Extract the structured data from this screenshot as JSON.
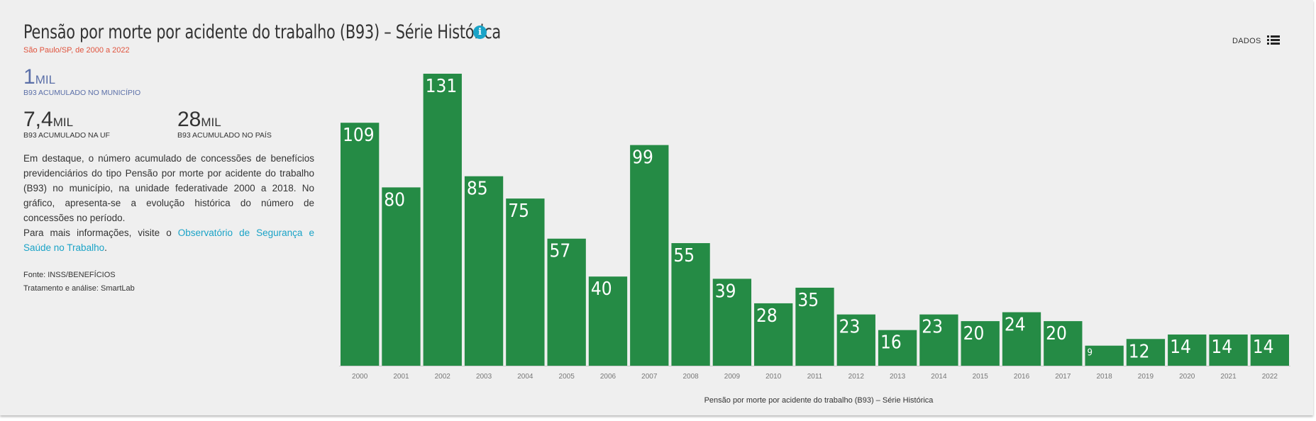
{
  "header": {
    "title": "Pensão por morte por acidente do trabalho (B93) – Série Histórica",
    "subtitle": "São Paulo/SP, de 2000 a 2022",
    "dados_label": "DADOS"
  },
  "kpis": {
    "municipio": {
      "value": "1",
      "unit": "MIL",
      "label": "B93 ACUMULADO NO MUNICÍPIO"
    },
    "uf": {
      "value": "7,4",
      "unit": "MIL",
      "label": "B93 ACUMULADO NA UF"
    },
    "pais": {
      "value": "28",
      "unit": "MIL",
      "label": "B93 ACUMULADO NO PAÍS"
    }
  },
  "description": {
    "paragraph": "Em destaque, o número acumulado de concessões de benefícios previdenciários do tipo Pensão por morte por acidente do trabalho (B93) no município, na unidade federativade 2000 a 2018. No gráfico, apresenta-se a evolução histórica do número de concessões no período.",
    "more_info_prefix": "Para mais informações, visite o ",
    "link_text": "Observatório de Segurança e Saúde no Trabalho",
    "more_info_suffix": "."
  },
  "source": {
    "fonte": "Fonte: INSS/BENEFÍCIOS",
    "tratamento": "Tratamento e análise: SmartLab"
  },
  "icons": {
    "info": "info-icon",
    "data_table": "list-icon"
  },
  "colors": {
    "bar": "#258b45",
    "accent": "#1aa3c7",
    "subtitle": "#e0533d",
    "kpi_main": "#5b6fa8"
  },
  "chart_data": {
    "type": "bar",
    "categories": [
      "2000",
      "2001",
      "2002",
      "2003",
      "2004",
      "2005",
      "2006",
      "2007",
      "2008",
      "2009",
      "2010",
      "2011",
      "2012",
      "2013",
      "2014",
      "2015",
      "2016",
      "2017",
      "2018",
      "2019",
      "2020",
      "2021",
      "2022"
    ],
    "values": [
      109,
      80,
      131,
      85,
      75,
      57,
      40,
      99,
      55,
      39,
      28,
      35,
      23,
      16,
      23,
      20,
      24,
      20,
      9,
      12,
      14,
      14,
      14
    ],
    "xlabel": "Pensão por morte por acidente do trabalho (B93) – Série Histórica",
    "ylabel": "",
    "ylim": [
      0,
      131
    ],
    "grid": false,
    "data_labels": true,
    "bar_color": "#258b45"
  }
}
